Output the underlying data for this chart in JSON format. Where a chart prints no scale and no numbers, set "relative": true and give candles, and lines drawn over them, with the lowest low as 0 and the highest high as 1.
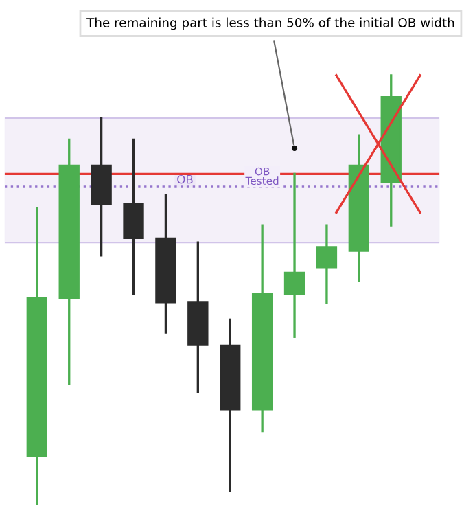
{
  "chart_data": {
    "type": "candlestick",
    "relative": true,
    "categories": [
      null,
      null,
      null,
      null,
      null,
      null,
      null,
      null,
      null,
      null,
      null,
      null
    ],
    "ohlc": [
      [
        0.11,
        0.69,
        0.0,
        0.48
      ],
      [
        0.48,
        0.85,
        0.28,
        0.79
      ],
      [
        0.79,
        0.9,
        0.58,
        0.7
      ],
      [
        0.7,
        0.85,
        0.49,
        0.62
      ],
      [
        0.62,
        0.72,
        0.4,
        0.47
      ],
      [
        0.47,
        0.61,
        0.26,
        0.37
      ],
      [
        0.37,
        0.43,
        0.03,
        0.22
      ],
      [
        0.22,
        0.65,
        0.17,
        0.49
      ],
      [
        0.49,
        0.77,
        0.39,
        0.54
      ],
      [
        0.55,
        0.65,
        0.47,
        0.6
      ],
      [
        0.59,
        0.86,
        0.52,
        0.79
      ],
      [
        0.75,
        1.0,
        0.65,
        0.95
      ]
    ],
    "colors": [
      "#4caf50",
      "#4caf50",
      "#2b2b2b",
      "#2b2b2b",
      "#2b2b2b",
      "#2b2b2b",
      "#2b2b2b",
      "#4caf50",
      "#4caf50",
      "#4caf50",
      "#4caf50",
      "#4caf50"
    ],
    "bands": [
      {
        "axis": "y",
        "from": 0.61,
        "to": 0.9,
        "label": "OB",
        "color": "#ede7f6"
      }
    ],
    "ref_lines": [
      {
        "axis": "y",
        "value": 0.74,
        "color": "#9575cd",
        "line_style": "dotted"
      },
      {
        "axis": "y",
        "value": 0.77,
        "color": "#e53935"
      }
    ],
    "annotations": [
      "The remaining part is less than 50% of the initial OB width",
      {
        "text": "OB\nTested",
        "y": 0.74
      }
    ]
  }
}
